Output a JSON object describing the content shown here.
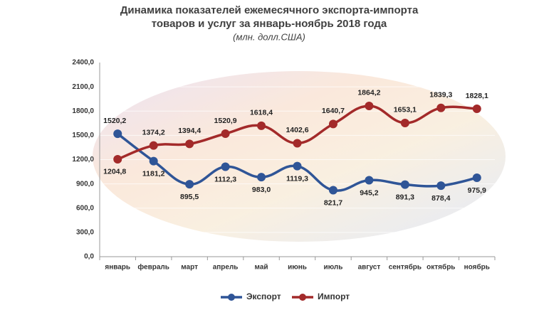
{
  "chart_data": {
    "type": "line",
    "title": [
      "Динамика показателей ежемесячного экспорта-импорта",
      "товаров и услуг за январь-ноябрь 2018 года"
    ],
    "subtitle": "(млн. долл.США)",
    "categories": [
      "январь",
      "февраль",
      "март",
      "апрель",
      "май",
      "июнь",
      "июль",
      "август",
      "сентябрь",
      "октябрь",
      "ноябрь"
    ],
    "series": [
      {
        "name": "Экспорт",
        "color": "#2f5597",
        "values": [
          1520.2,
          1181.2,
          895.5,
          1112.3,
          983.0,
          1119.3,
          821.7,
          945.2,
          891.3,
          878.4,
          975.9
        ],
        "value_labels": [
          "1520,2",
          "1181,2",
          "895,5",
          "1112,3",
          "983,0",
          "1119,3",
          "821,7",
          "945,2",
          "891,3",
          "878,4",
          "975,9"
        ]
      },
      {
        "name": "Импорт",
        "color": "#a32a2a",
        "values": [
          1204.8,
          1374.2,
          1394.4,
          1520.9,
          1618.4,
          1402.6,
          1640.7,
          1864.2,
          1653.1,
          1839.3,
          1828.1
        ],
        "value_labels": [
          "1204,8",
          "1374,2",
          "1394,4",
          "1520,9",
          "1618,4",
          "1402,6",
          "1640,7",
          "1864,2",
          "1653,1",
          "1839,3",
          "1828,1"
        ]
      }
    ],
    "ylim": [
      0,
      2400
    ],
    "yticks": [
      {
        "value": 0,
        "label": "0,0"
      },
      {
        "value": 300,
        "label": "300,0"
      },
      {
        "value": 600,
        "label": "600,0"
      },
      {
        "value": 900,
        "label": "900,0"
      },
      {
        "value": 1200,
        "label": "1200,0"
      },
      {
        "value": 1500,
        "label": "1500,0"
      },
      {
        "value": 1800,
        "label": "1800,0"
      },
      {
        "value": 2100,
        "label": "2100,0"
      },
      {
        "value": 2400,
        "label": "2400,0"
      }
    ],
    "grid": true,
    "legend": "bottom"
  }
}
